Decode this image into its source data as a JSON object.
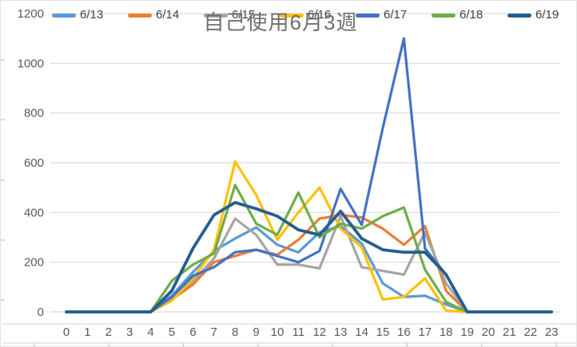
{
  "chart_data": {
    "type": "line",
    "title": "自己使用6月3週",
    "xlabel": "",
    "ylabel": "",
    "x": [
      0,
      1,
      2,
      3,
      4,
      5,
      6,
      7,
      8,
      9,
      10,
      11,
      12,
      13,
      14,
      15,
      16,
      17,
      18,
      19,
      20,
      21,
      22,
      23
    ],
    "yticks": [
      0,
      200,
      400,
      600,
      800,
      1000,
      1200
    ],
    "ylim": [
      0,
      1200
    ],
    "grid": true,
    "legend_position": "top",
    "series": [
      {
        "name": "6/13",
        "color": "#5B9BD5",
        "values": [
          0,
          0,
          0,
          0,
          0,
          65,
          160,
          245,
          295,
          340,
          270,
          240,
          320,
          345,
          275,
          115,
          60,
          65,
          30,
          0,
          0,
          0,
          0,
          0
        ]
      },
      {
        "name": "6/14",
        "color": "#ED7D31",
        "values": [
          0,
          0,
          0,
          0,
          0,
          50,
          110,
          200,
          225,
          250,
          230,
          290,
          375,
          390,
          380,
          335,
          270,
          345,
          85,
          0,
          0,
          0,
          0,
          0
        ]
      },
      {
        "name": "6/15",
        "color": "#A5A5A5",
        "values": [
          0,
          0,
          0,
          0,
          0,
          55,
          125,
          215,
          375,
          310,
          190,
          190,
          175,
          385,
          180,
          165,
          150,
          320,
          115,
          0,
          0,
          0,
          0,
          0
        ]
      },
      {
        "name": "6/16",
        "color": "#FFC000",
        "values": [
          0,
          0,
          0,
          0,
          0,
          45,
          135,
          250,
          605,
          470,
          290,
          400,
          500,
          335,
          260,
          50,
          60,
          135,
          5,
          0,
          0,
          0,
          0,
          0
        ]
      },
      {
        "name": "6/17",
        "color": "#4472C4",
        "values": [
          0,
          0,
          0,
          0,
          0,
          60,
          145,
          180,
          240,
          250,
          225,
          200,
          245,
          495,
          350,
          740,
          1100,
          255,
          150,
          0,
          0,
          0,
          0,
          0
        ]
      },
      {
        "name": "6/18",
        "color": "#70AD47",
        "values": [
          0,
          0,
          0,
          0,
          0,
          125,
          190,
          235,
          510,
          355,
          310,
          480,
          300,
          355,
          335,
          385,
          420,
          170,
          40,
          0,
          0,
          0,
          0,
          0
        ]
      },
      {
        "name": "6/19",
        "color": "#255E91",
        "values": [
          0,
          0,
          0,
          0,
          0,
          85,
          255,
          390,
          440,
          415,
          385,
          330,
          310,
          405,
          295,
          250,
          240,
          240,
          150,
          0,
          0,
          0,
          0,
          0
        ]
      }
    ]
  },
  "colors": {
    "gridline": "#D9D9D9",
    "axis_line": "#D9D9D9",
    "worksheet_tick": "#BFBFBF",
    "axis_text": "#595959",
    "legend_text": "#404040",
    "title_text": "#6F6F6F"
  }
}
